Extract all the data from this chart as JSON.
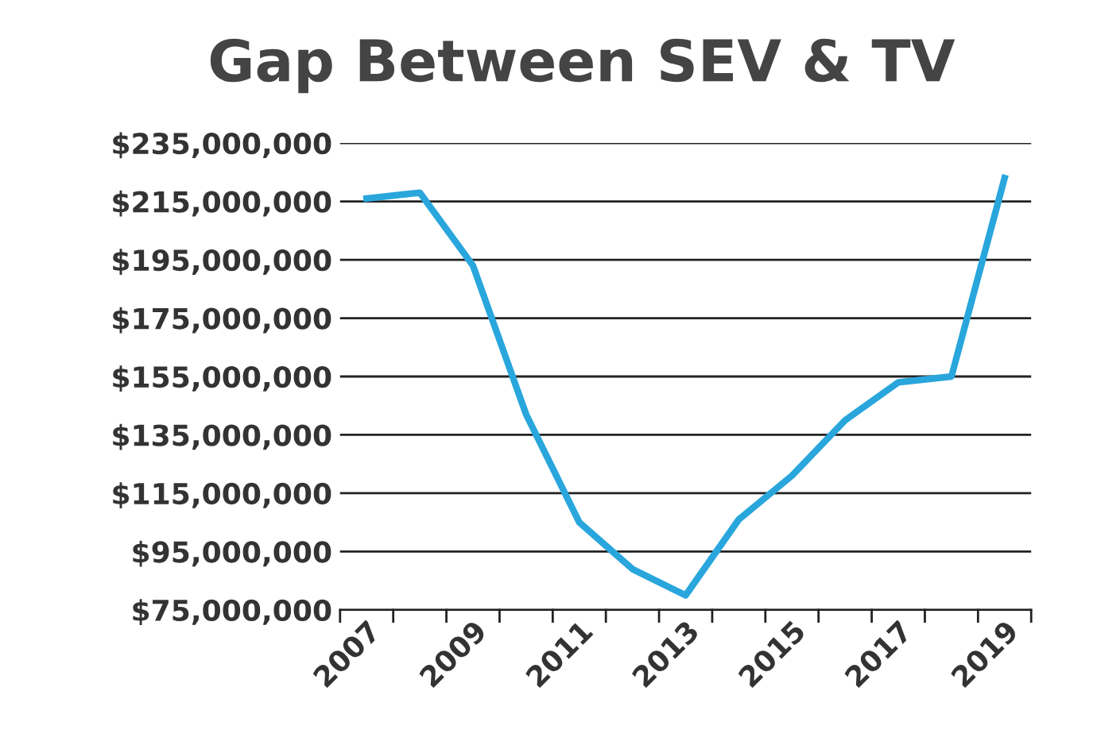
{
  "chart_data": {
    "type": "line",
    "title": "Gap Between SEV & TV",
    "categories": [
      "2007",
      null,
      "2009",
      null,
      "2011",
      null,
      "2013",
      null,
      "2015",
      null,
      "2017",
      null,
      "2019"
    ],
    "series": [
      {
        "color": "#29a6dc",
        "values": [
          216000000,
          218000000,
          193000000,
          142000000,
          105000000,
          89000000,
          80000000,
          106000000,
          121000000,
          140000000,
          153000000,
          155000000,
          223000000
        ]
      }
    ],
    "ylim": [
      75000000,
      235000000
    ],
    "yticks": [
      {
        "value": 75000000,
        "label": "$75,000,000"
      },
      {
        "value": 95000000,
        "label": "$95,000,000"
      },
      {
        "value": 115000000,
        "label": "$115,000,000"
      },
      {
        "value": 135000000,
        "label": "$135,000,000"
      },
      {
        "value": 155000000,
        "label": "$155,000,000"
      },
      {
        "value": 175000000,
        "label": "$175,000,000"
      },
      {
        "value": 195000000,
        "label": "$195,000,000"
      },
      {
        "value": 215000000,
        "label": "$215,000,000"
      },
      {
        "value": 235000000,
        "label": "$235,000,000"
      }
    ],
    "grid": "y",
    "marker": "none",
    "line_style": "solid"
  }
}
